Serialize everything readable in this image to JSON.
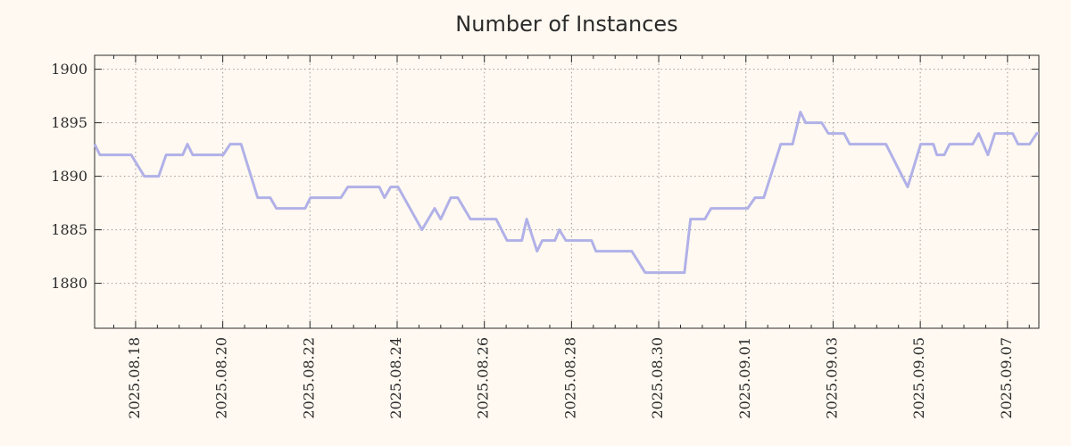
{
  "colors": {
    "background": "#fff9f1",
    "line": "#b1b1e8",
    "grid": "#999999",
    "axis": "#2b2b2b",
    "text": "#2b2b2b"
  },
  "chart_data": {
    "type": "line",
    "title": "Number of Instances",
    "legend": "none",
    "grid": {
      "style": "dotted",
      "color": "#999999"
    },
    "x_axis": {
      "unit": "date",
      "x_encoding": "days since 2025.08.17 00:00",
      "domain_days": [
        0.06,
        21.72
      ],
      "minor_tick_step_days": 0.5,
      "major_ticks": [
        {
          "day": 1,
          "label": "2025.08.18"
        },
        {
          "day": 3,
          "label": "2025.08.20"
        },
        {
          "day": 5,
          "label": "2025.08.22"
        },
        {
          "day": 7,
          "label": "2025.08.24"
        },
        {
          "day": 9,
          "label": "2025.08.26"
        },
        {
          "day": 11,
          "label": "2025.08.28"
        },
        {
          "day": 13,
          "label": "2025.08.30"
        },
        {
          "day": 15,
          "label": "2025.09.01"
        },
        {
          "day": 17,
          "label": "2025.09.03"
        },
        {
          "day": 19,
          "label": "2025.09.05"
        },
        {
          "day": 21,
          "label": "2025.09.07"
        }
      ]
    },
    "y_axis": {
      "range": [
        1875.8,
        1901.3
      ],
      "ticks": [
        1880,
        1885,
        1890,
        1895,
        1900
      ]
    },
    "series": [
      {
        "name": "instances",
        "color": "#b1b1e8",
        "points_day_value": [
          [
            0.06,
            1893
          ],
          [
            0.18,
            1892
          ],
          [
            0.9,
            1892
          ],
          [
            1.2,
            1890
          ],
          [
            1.53,
            1890
          ],
          [
            1.7,
            1892
          ],
          [
            2.08,
            1892
          ],
          [
            2.19,
            1893
          ],
          [
            2.31,
            1892
          ],
          [
            3.01,
            1892
          ],
          [
            3.17,
            1893
          ],
          [
            3.42,
            1893
          ],
          [
            3.8,
            1888
          ],
          [
            4.09,
            1888
          ],
          [
            4.23,
            1887
          ],
          [
            4.89,
            1887
          ],
          [
            5.01,
            1888
          ],
          [
            5.71,
            1888
          ],
          [
            5.87,
            1889
          ],
          [
            6.59,
            1889
          ],
          [
            6.71,
            1888
          ],
          [
            6.85,
            1889
          ],
          [
            7.02,
            1889
          ],
          [
            7.57,
            1885
          ],
          [
            7.86,
            1887
          ],
          [
            8.0,
            1886
          ],
          [
            8.23,
            1888
          ],
          [
            8.39,
            1888
          ],
          [
            8.68,
            1886
          ],
          [
            9.27,
            1886
          ],
          [
            9.52,
            1884
          ],
          [
            9.86,
            1884
          ],
          [
            9.97,
            1886
          ],
          [
            10.21,
            1883
          ],
          [
            10.33,
            1884
          ],
          [
            10.62,
            1884
          ],
          [
            10.72,
            1885
          ],
          [
            10.87,
            1884
          ],
          [
            11.46,
            1884
          ],
          [
            11.56,
            1883
          ],
          [
            12.38,
            1883
          ],
          [
            12.69,
            1881
          ],
          [
            13.59,
            1881
          ],
          [
            13.73,
            1886
          ],
          [
            14.06,
            1886
          ],
          [
            14.2,
            1887
          ],
          [
            15.04,
            1887
          ],
          [
            15.21,
            1888
          ],
          [
            15.41,
            1888
          ],
          [
            15.8,
            1893
          ],
          [
            16.07,
            1893
          ],
          [
            16.25,
            1896
          ],
          [
            16.37,
            1895
          ],
          [
            16.74,
            1895
          ],
          [
            16.89,
            1894
          ],
          [
            17.25,
            1894
          ],
          [
            17.38,
            1893
          ],
          [
            18.21,
            1893
          ],
          [
            18.71,
            1889
          ],
          [
            19.01,
            1893
          ],
          [
            19.3,
            1893
          ],
          [
            19.38,
            1892
          ],
          [
            19.55,
            1892
          ],
          [
            19.67,
            1893
          ],
          [
            20.2,
            1893
          ],
          [
            20.34,
            1894
          ],
          [
            20.55,
            1892
          ],
          [
            20.71,
            1894
          ],
          [
            21.12,
            1894
          ],
          [
            21.24,
            1893
          ],
          [
            21.51,
            1893
          ],
          [
            21.67,
            1894
          ],
          [
            21.72,
            1894
          ]
        ]
      }
    ]
  }
}
